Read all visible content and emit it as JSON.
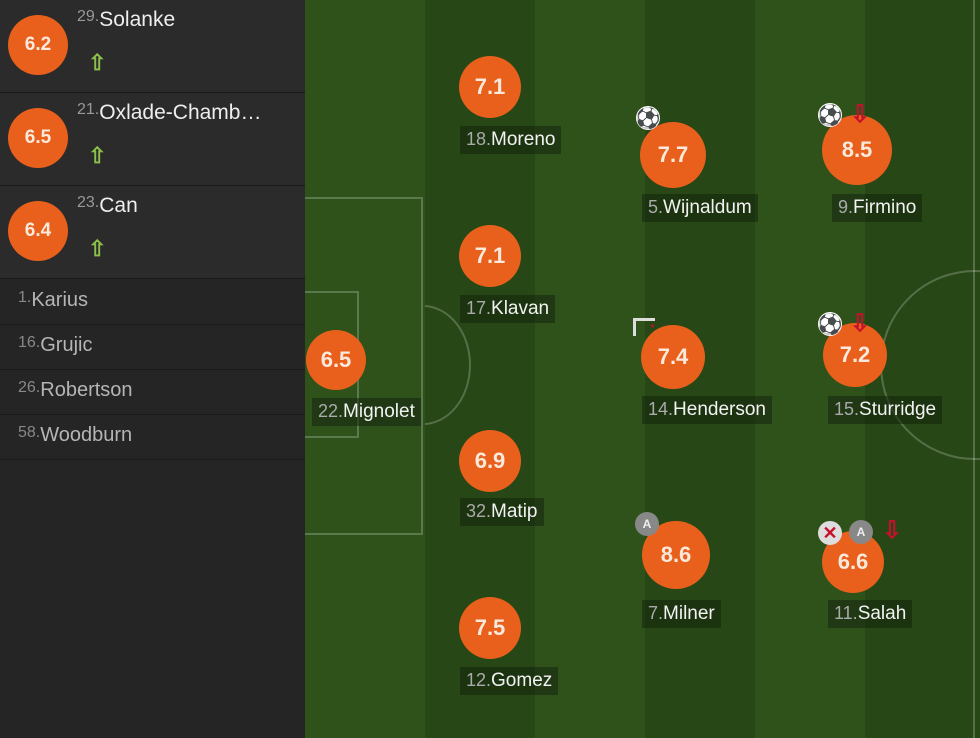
{
  "colors": {
    "rating": "#e8601c",
    "sub_in": "#8cc04a",
    "sub_out": "#c8102e",
    "pitch": "#2f521b"
  },
  "substitutes": [
    {
      "number": "29.",
      "name": "Solanke",
      "rating": "6.2",
      "icon": "sub-in-arrow-icon"
    },
    {
      "number": "21.",
      "name": "Oxlade-Chamb…",
      "rating": "6.5",
      "icon": "sub-in-arrow-icon"
    },
    {
      "number": "23.",
      "name": "Can",
      "rating": "6.4",
      "icon": "sub-in-arrow-icon"
    }
  ],
  "bench": [
    {
      "number": "1.",
      "name": "Karius"
    },
    {
      "number": "16.",
      "name": "Grujic"
    },
    {
      "number": "26.",
      "name": "Robertson"
    },
    {
      "number": "58.",
      "name": "Woodburn"
    }
  ],
  "players": [
    {
      "number": "22.",
      "name": "Mignolet",
      "rating": "6.5",
      "icons": []
    },
    {
      "number": "18.",
      "name": "Moreno",
      "rating": "7.1",
      "icons": []
    },
    {
      "number": "17.",
      "name": "Klavan",
      "rating": "7.1",
      "icons": []
    },
    {
      "number": "32.",
      "name": "Matip",
      "rating": "6.9",
      "icons": []
    },
    {
      "number": "12.",
      "name": "Gomez",
      "rating": "7.5",
      "icons": []
    },
    {
      "number": "5.",
      "name": "Wijnaldum",
      "rating": "7.7",
      "icons": [
        "goal-ball-icon"
      ]
    },
    {
      "number": "14.",
      "name": "Henderson",
      "rating": "7.4",
      "icons": [
        "corner-flag-icon"
      ]
    },
    {
      "number": "7.",
      "name": "Milner",
      "rating": "8.6",
      "icons": [
        "assist-icon"
      ]
    },
    {
      "number": "9.",
      "name": "Firmino",
      "rating": "8.5",
      "icons": [
        "goal-ball-icon",
        "sub-out-arrow-icon"
      ]
    },
    {
      "number": "15.",
      "name": "Sturridge",
      "rating": "7.2",
      "icons": [
        "goal-ball-icon",
        "sub-out-arrow-icon"
      ]
    },
    {
      "number": "11.",
      "name": "Salah",
      "rating": "6.6",
      "icons": [
        "missed-chance-icon",
        "assist-icon",
        "sub-out-arrow-icon"
      ]
    }
  ],
  "icon_glyphs": {
    "assist-icon": "A"
  }
}
